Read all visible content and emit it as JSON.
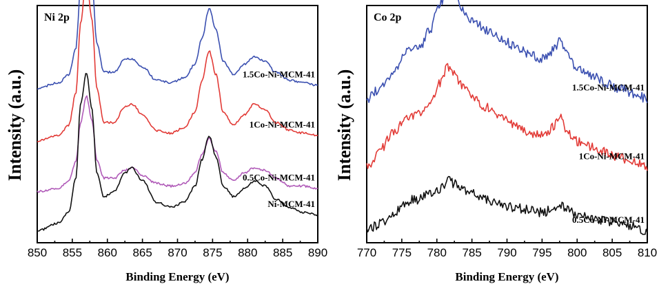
{
  "chart_data": [
    {
      "type": "line",
      "title": "Ni 2p",
      "xlabel": "Binding Energy (eV)",
      "ylabel": "Intensity (a.u.)",
      "xlim": [
        850,
        890
      ],
      "xticks": [
        850,
        855,
        860,
        865,
        870,
        875,
        880,
        885,
        890
      ],
      "grid": false,
      "yticks_shown": false,
      "series": [
        {
          "name": "1.5Co-Ni-MCM-41",
          "color": "#3a4fb0",
          "offset": 0.54,
          "x": [
            850,
            853,
            854.5,
            855.5,
            856.2,
            857,
            857.8,
            858.5,
            859.5,
            861,
            862.5,
            863.5,
            865,
            867,
            869,
            871,
            872.5,
            873.5,
            874.5,
            875.5,
            876.5,
            878,
            879.5,
            881,
            882.5,
            884,
            886,
            888,
            890
          ],
          "y": [
            0.0,
            0.02,
            0.05,
            0.15,
            0.38,
            0.55,
            0.4,
            0.17,
            0.06,
            0.06,
            0.11,
            0.11,
            0.08,
            0.03,
            0.02,
            0.04,
            0.09,
            0.19,
            0.3,
            0.22,
            0.1,
            0.05,
            0.09,
            0.12,
            0.1,
            0.06,
            0.03,
            0.02,
            0.01
          ]
        },
        {
          "name": "1Co-Ni-MCM-41",
          "color": "#e23a36",
          "offset": 0.34,
          "x": [
            850,
            853,
            854.5,
            855.5,
            856.2,
            857,
            857.8,
            858.5,
            859.5,
            861,
            862.5,
            863.5,
            865,
            867,
            869,
            871,
            872.5,
            873.5,
            874.5,
            875.5,
            876.5,
            878,
            879.5,
            881,
            882.5,
            884,
            886,
            888,
            890
          ],
          "y": [
            0.0,
            0.02,
            0.06,
            0.18,
            0.45,
            0.62,
            0.46,
            0.2,
            0.07,
            0.07,
            0.13,
            0.14,
            0.1,
            0.04,
            0.03,
            0.05,
            0.11,
            0.23,
            0.34,
            0.25,
            0.11,
            0.06,
            0.1,
            0.14,
            0.12,
            0.07,
            0.04,
            0.03,
            0.02
          ]
        },
        {
          "name": "0.5Co-Ni-MCM-41",
          "color": "#b05ab8",
          "offset": 0.15,
          "x": [
            850,
            853,
            854.5,
            855.5,
            856.2,
            857,
            857.8,
            858.5,
            859.5,
            861,
            862.5,
            863.5,
            865,
            867,
            869,
            871,
            872.5,
            873.5,
            874.5,
            875.5,
            876.5,
            878,
            879.5,
            881,
            882.5,
            884,
            886,
            888,
            890
          ],
          "y": [
            0.0,
            0.01,
            0.04,
            0.11,
            0.26,
            0.36,
            0.27,
            0.12,
            0.05,
            0.05,
            0.08,
            0.09,
            0.06,
            0.03,
            0.02,
            0.03,
            0.07,
            0.14,
            0.2,
            0.15,
            0.07,
            0.04,
            0.07,
            0.09,
            0.08,
            0.05,
            0.02,
            0.02,
            0.01
          ]
        },
        {
          "name": "Ni-MCM-41",
          "color": "#111111",
          "offset": 0.0,
          "x": [
            850,
            853,
            854.5,
            855.5,
            856.2,
            857,
            857.8,
            858.5,
            859.5,
            861,
            862.5,
            863.5,
            865,
            867,
            869,
            871,
            872.5,
            873.5,
            874.5,
            875.5,
            876.5,
            878,
            879.5,
            881,
            882.5,
            884,
            886,
            888,
            890
          ],
          "y": [
            0.0,
            0.03,
            0.07,
            0.2,
            0.48,
            0.6,
            0.46,
            0.22,
            0.13,
            0.15,
            0.22,
            0.24,
            0.19,
            0.11,
            0.09,
            0.11,
            0.17,
            0.27,
            0.36,
            0.28,
            0.17,
            0.13,
            0.16,
            0.19,
            0.17,
            0.12,
            0.09,
            0.07,
            0.06
          ]
        }
      ]
    },
    {
      "type": "line",
      "title": "Co 2p",
      "xlabel": "Binding Energy (eV)",
      "ylabel": "Intensity (a.u.)",
      "xlim": [
        770,
        810
      ],
      "xticks": [
        770,
        775,
        780,
        785,
        790,
        795,
        800,
        805,
        810
      ],
      "grid": false,
      "yticks_shown": false,
      "series": [
        {
          "name": "1.5Co-Ni-MCM-41",
          "color": "#3a4fb0",
          "offset": 0.5,
          "x": [
            770,
            772,
            774,
            775.5,
            776.5,
            777.5,
            779,
            780.5,
            781.5,
            782.5,
            783.5,
            785,
            787,
            789,
            791,
            793,
            795,
            796.5,
            797.5,
            798.5,
            800,
            802,
            804,
            806,
            808,
            810
          ],
          "y": [
            0.0,
            0.04,
            0.1,
            0.17,
            0.2,
            0.19,
            0.26,
            0.36,
            0.42,
            0.4,
            0.34,
            0.3,
            0.26,
            0.23,
            0.2,
            0.17,
            0.15,
            0.18,
            0.22,
            0.17,
            0.11,
            0.09,
            0.06,
            0.04,
            0.02,
            0.0
          ]
        },
        {
          "name": "1Co-Ni-MCM-41",
          "color": "#e23a36",
          "offset": 0.24,
          "x": [
            770,
            772,
            774,
            775.5,
            776.5,
            777.5,
            779,
            780.5,
            781.5,
            782.5,
            783.5,
            785,
            787,
            789,
            791,
            793,
            795,
            796.5,
            797.5,
            798.5,
            800,
            802,
            804,
            806,
            808,
            810
          ],
          "y": [
            0.0,
            0.07,
            0.14,
            0.18,
            0.2,
            0.21,
            0.25,
            0.32,
            0.38,
            0.36,
            0.31,
            0.27,
            0.23,
            0.19,
            0.16,
            0.13,
            0.12,
            0.15,
            0.19,
            0.14,
            0.1,
            0.08,
            0.06,
            0.04,
            0.02,
            0.0
          ]
        },
        {
          "name": "0.5Co-Ni-MCM-41",
          "color": "#111111",
          "offset": 0.0,
          "x": [
            770,
            772,
            774,
            775.5,
            776.5,
            777.5,
            779,
            780.5,
            781.5,
            782.5,
            783.5,
            785,
            787,
            789,
            791,
            793,
            795,
            796.5,
            797.5,
            798.5,
            800,
            802,
            804,
            806,
            808,
            810
          ],
          "y": [
            0.0,
            0.03,
            0.07,
            0.1,
            0.12,
            0.12,
            0.14,
            0.16,
            0.19,
            0.18,
            0.16,
            0.14,
            0.12,
            0.1,
            0.09,
            0.08,
            0.07,
            0.08,
            0.1,
            0.08,
            0.06,
            0.05,
            0.04,
            0.03,
            0.02,
            0.0
          ]
        }
      ]
    }
  ]
}
